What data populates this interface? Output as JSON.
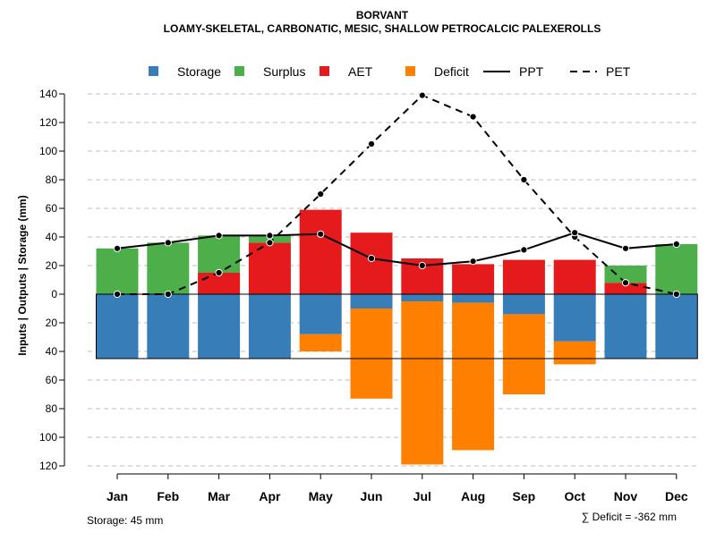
{
  "chart_data": {
    "type": "bar",
    "title": "BORVANT",
    "subtitle": "LOAMY-SKELETAL, CARBONATIC, MESIC, SHALLOW PETROCALCIC PALEXEROLLS",
    "ylabel": "Inputs | Outputs | Storage    (mm)",
    "categories": [
      "Jan",
      "Feb",
      "Mar",
      "Apr",
      "May",
      "Jun",
      "Jul",
      "Aug",
      "Sep",
      "Oct",
      "Nov",
      "Dec"
    ],
    "y_ticks_positive": [
      "140",
      "120",
      "100",
      "80",
      "60",
      "40",
      "20",
      "0"
    ],
    "y_ticks_negative": [
      "20",
      "40",
      "60",
      "80",
      "100",
      "120"
    ],
    "ylim": [
      -120,
      140
    ],
    "storage_capacity": 45,
    "series": [
      {
        "name": "Storage",
        "color": "#377eb8",
        "values": [
          45,
          45,
          45,
          45,
          28,
          10,
          5,
          6,
          14,
          33,
          45,
          45
        ]
      },
      {
        "name": "Surplus",
        "color": "#4daf4a",
        "values": [
          32,
          36,
          26,
          5,
          0,
          0,
          0,
          0,
          0,
          0,
          12,
          35
        ]
      },
      {
        "name": "AET",
        "color": "#e41a1c",
        "values": [
          0,
          0,
          15,
          36,
          59,
          43,
          25,
          21,
          24,
          24,
          8,
          0
        ]
      },
      {
        "name": "Deficit",
        "color": "#ff7f00",
        "values": [
          0,
          0,
          0,
          0,
          12,
          63,
          114,
          103,
          56,
          16,
          0,
          0
        ]
      },
      {
        "name": "PPT",
        "style": "solid",
        "values": [
          32,
          36,
          41,
          41,
          42,
          25,
          20,
          23,
          31,
          43,
          32,
          35
        ]
      },
      {
        "name": "PET",
        "style": "dashed",
        "values": [
          0,
          0,
          15,
          36,
          70,
          105,
          139,
          124,
          80,
          40,
          8,
          0
        ]
      }
    ],
    "legend": [
      "Storage",
      "Surplus",
      "AET",
      "Deficit",
      "PPT",
      "PET"
    ],
    "legend_position": "top",
    "footer_left": "Storage: 45 mm",
    "footer_right": "∑ Deficit = -362 mm"
  }
}
